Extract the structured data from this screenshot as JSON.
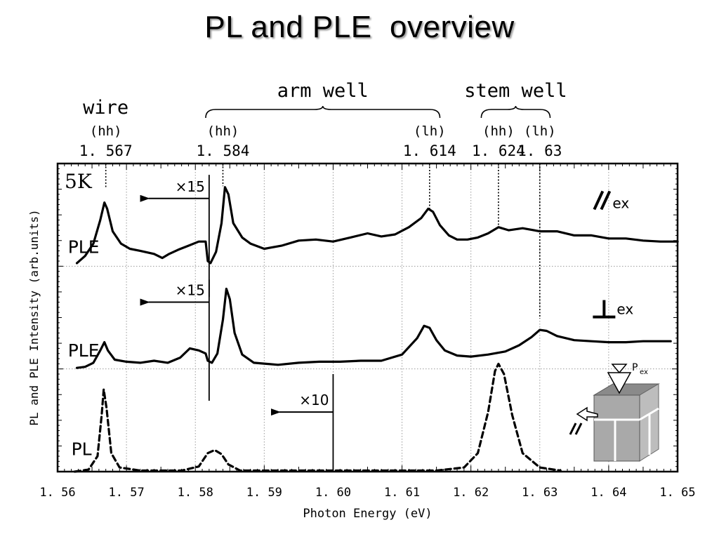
{
  "page": {
    "title": "PL and PLE  overview"
  },
  "chart_data": {
    "type": "line",
    "title": "PL and PLE  overview",
    "xlabel": "Photon Energy (eV)",
    "ylabel": "PL and PLE Intensity (arb.units)",
    "xlim": [
      1.56,
      1.65
    ],
    "ylim": [
      0,
      3
    ],
    "x_ticks": [
      "1.56",
      "1.57",
      "1.58",
      "1.59",
      "1.60",
      "1.61",
      "1.62",
      "1.63",
      "1.64",
      "1.65"
    ],
    "grid": true,
    "temperature_label": "5K",
    "groups": [
      {
        "label": "wire",
        "x_start": 1.567,
        "x_end": 1.567,
        "brace": false
      },
      {
        "label": "arm well",
        "x_start": 1.5815,
        "x_end": 1.6155,
        "brace": true
      },
      {
        "label": "stem well",
        "x_start": 1.6215,
        "x_end": 1.6315,
        "brace": true
      }
    ],
    "transitions": [
      {
        "type": "(hh)",
        "value_label": "1.567",
        "x": 1.567,
        "y_end": 2.77
      },
      {
        "type": "(hh)",
        "value_label": "1.584",
        "x": 1.584,
        "y_end": 2.78
      },
      {
        "type": "(lh)",
        "value_label": "1.614",
        "x": 1.614,
        "y_end": 2.55
      },
      {
        "type": "(hh)",
        "value_label": "1.624",
        "x": 1.624,
        "y_end": 2.37
      },
      {
        "type": "(lh)",
        "value_label": "1.63",
        "x": 1.63,
        "y_end": 1.49
      }
    ],
    "scale_markers": [
      {
        "label": "×15",
        "x": 1.582,
        "y_top": 2.89,
        "y_bottom": 1.7,
        "arrow_y": 2.66,
        "arrow_to_x": 1.573
      },
      {
        "label": "×15",
        "x": 1.582,
        "y_top": 1.87,
        "y_bottom": 0.69,
        "arrow_y": 1.65,
        "arrow_to_x": 1.573
      },
      {
        "label": "×10",
        "x": 1.6,
        "y_top": 0.95,
        "y_bottom": 0.0,
        "arrow_y": 0.58,
        "arrow_to_x": 1.592
      }
    ],
    "series": [
      {
        "name": "PLE",
        "polarization": "//",
        "polarization_sub": "ex",
        "style": "solid",
        "points": [
          [
            1.5628,
            2.03
          ],
          [
            1.564,
            2.1
          ],
          [
            1.5652,
            2.22
          ],
          [
            1.5662,
            2.45
          ],
          [
            1.5668,
            2.62
          ],
          [
            1.5672,
            2.56
          ],
          [
            1.568,
            2.34
          ],
          [
            1.5692,
            2.22
          ],
          [
            1.5705,
            2.17
          ],
          [
            1.572,
            2.15
          ],
          [
            1.574,
            2.12
          ],
          [
            1.5752,
            2.08
          ],
          [
            1.5762,
            2.12
          ],
          [
            1.5775,
            2.16
          ],
          [
            1.579,
            2.2
          ],
          [
            1.5805,
            2.24
          ],
          [
            1.5815,
            2.24
          ],
          [
            1.5818,
            2.05
          ],
          [
            1.5822,
            2.03
          ],
          [
            1.583,
            2.14
          ],
          [
            1.5838,
            2.42
          ],
          [
            1.5843,
            2.77
          ],
          [
            1.5848,
            2.7
          ],
          [
            1.5855,
            2.42
          ],
          [
            1.5868,
            2.28
          ],
          [
            1.588,
            2.22
          ],
          [
            1.59,
            2.17
          ],
          [
            1.5925,
            2.2
          ],
          [
            1.595,
            2.25
          ],
          [
            1.5975,
            2.26
          ],
          [
            1.6,
            2.24
          ],
          [
            1.6025,
            2.28
          ],
          [
            1.605,
            2.32
          ],
          [
            1.607,
            2.29
          ],
          [
            1.609,
            2.31
          ],
          [
            1.611,
            2.38
          ],
          [
            1.6128,
            2.47
          ],
          [
            1.6138,
            2.56
          ],
          [
            1.6145,
            2.53
          ],
          [
            1.6155,
            2.4
          ],
          [
            1.6168,
            2.3
          ],
          [
            1.618,
            2.26
          ],
          [
            1.6195,
            2.26
          ],
          [
            1.621,
            2.28
          ],
          [
            1.6225,
            2.32
          ],
          [
            1.624,
            2.38
          ],
          [
            1.6255,
            2.35
          ],
          [
            1.6275,
            2.37
          ],
          [
            1.63,
            2.34
          ],
          [
            1.6325,
            2.34
          ],
          [
            1.635,
            2.3
          ],
          [
            1.6375,
            2.3
          ],
          [
            1.64,
            2.27
          ],
          [
            1.6425,
            2.27
          ],
          [
            1.645,
            2.25
          ],
          [
            1.6475,
            2.24
          ],
          [
            1.65,
            2.24
          ]
        ]
      },
      {
        "name": "PLE",
        "polarization": "⊥",
        "polarization_sub": "ex",
        "style": "solid",
        "points": [
          [
            1.5628,
            1.01
          ],
          [
            1.564,
            1.02
          ],
          [
            1.5652,
            1.06
          ],
          [
            1.5662,
            1.18
          ],
          [
            1.5668,
            1.26
          ],
          [
            1.5673,
            1.18
          ],
          [
            1.5683,
            1.09
          ],
          [
            1.57,
            1.07
          ],
          [
            1.572,
            1.06
          ],
          [
            1.574,
            1.08
          ],
          [
            1.576,
            1.06
          ],
          [
            1.5778,
            1.11
          ],
          [
            1.5792,
            1.2
          ],
          [
            1.5805,
            1.18
          ],
          [
            1.5815,
            1.15
          ],
          [
            1.5818,
            1.08
          ],
          [
            1.5824,
            1.06
          ],
          [
            1.5832,
            1.15
          ],
          [
            1.584,
            1.48
          ],
          [
            1.5845,
            1.78
          ],
          [
            1.585,
            1.68
          ],
          [
            1.5857,
            1.35
          ],
          [
            1.5868,
            1.14
          ],
          [
            1.5885,
            1.06
          ],
          [
            1.592,
            1.04
          ],
          [
            1.595,
            1.06
          ],
          [
            1.598,
            1.07
          ],
          [
            1.601,
            1.07
          ],
          [
            1.604,
            1.08
          ],
          [
            1.607,
            1.08
          ],
          [
            1.61,
            1.14
          ],
          [
            1.6122,
            1.3
          ],
          [
            1.6132,
            1.42
          ],
          [
            1.614,
            1.4
          ],
          [
            1.615,
            1.28
          ],
          [
            1.6162,
            1.18
          ],
          [
            1.618,
            1.13
          ],
          [
            1.62,
            1.12
          ],
          [
            1.6225,
            1.14
          ],
          [
            1.625,
            1.17
          ],
          [
            1.627,
            1.23
          ],
          [
            1.6288,
            1.31
          ],
          [
            1.63,
            1.38
          ],
          [
            1.631,
            1.37
          ],
          [
            1.6325,
            1.32
          ],
          [
            1.635,
            1.28
          ],
          [
            1.6375,
            1.27
          ],
          [
            1.64,
            1.26
          ],
          [
            1.6425,
            1.26
          ],
          [
            1.645,
            1.27
          ],
          [
            1.6475,
            1.27
          ],
          [
            1.649,
            1.27
          ]
        ]
      },
      {
        "name": "PL",
        "style": "dashed",
        "points": [
          [
            1.5625,
            0.0
          ],
          [
            1.5645,
            0.02
          ],
          [
            1.5658,
            0.15
          ],
          [
            1.5664,
            0.55
          ],
          [
            1.5667,
            0.8
          ],
          [
            1.5671,
            0.62
          ],
          [
            1.5678,
            0.18
          ],
          [
            1.569,
            0.04
          ],
          [
            1.572,
            0.01
          ],
          [
            1.578,
            0.01
          ],
          [
            1.5805,
            0.05
          ],
          [
            1.5818,
            0.18
          ],
          [
            1.5828,
            0.21
          ],
          [
            1.5838,
            0.17
          ],
          [
            1.5848,
            0.07
          ],
          [
            1.5865,
            0.01
          ],
          [
            1.595,
            0.01
          ],
          [
            1.605,
            0.01
          ],
          [
            1.615,
            0.01
          ],
          [
            1.619,
            0.04
          ],
          [
            1.621,
            0.18
          ],
          [
            1.6225,
            0.58
          ],
          [
            1.6235,
            0.98
          ],
          [
            1.624,
            1.05
          ],
          [
            1.6248,
            0.95
          ],
          [
            1.626,
            0.55
          ],
          [
            1.6275,
            0.18
          ],
          [
            1.63,
            0.04
          ],
          [
            1.633,
            0.01
          ]
        ]
      }
    ],
    "series_labels": [
      {
        "text": "PLE",
        "x": 1.5615,
        "y": 2.13
      },
      {
        "text": "PLE",
        "x": 1.5615,
        "y": 1.12
      },
      {
        "text": "PL",
        "x": 1.562,
        "y": 0.16
      }
    ],
    "polarization_labels": [
      {
        "text": "//",
        "sub": "ex",
        "x": 1.6375,
        "y": 2.58
      },
      {
        "text": "⊥",
        "sub": "ex",
        "x": 1.6375,
        "y": 1.52
      }
    ],
    "inset": {
      "label": "P",
      "label_sub": "ex",
      "arrow_label": "//"
    }
  }
}
